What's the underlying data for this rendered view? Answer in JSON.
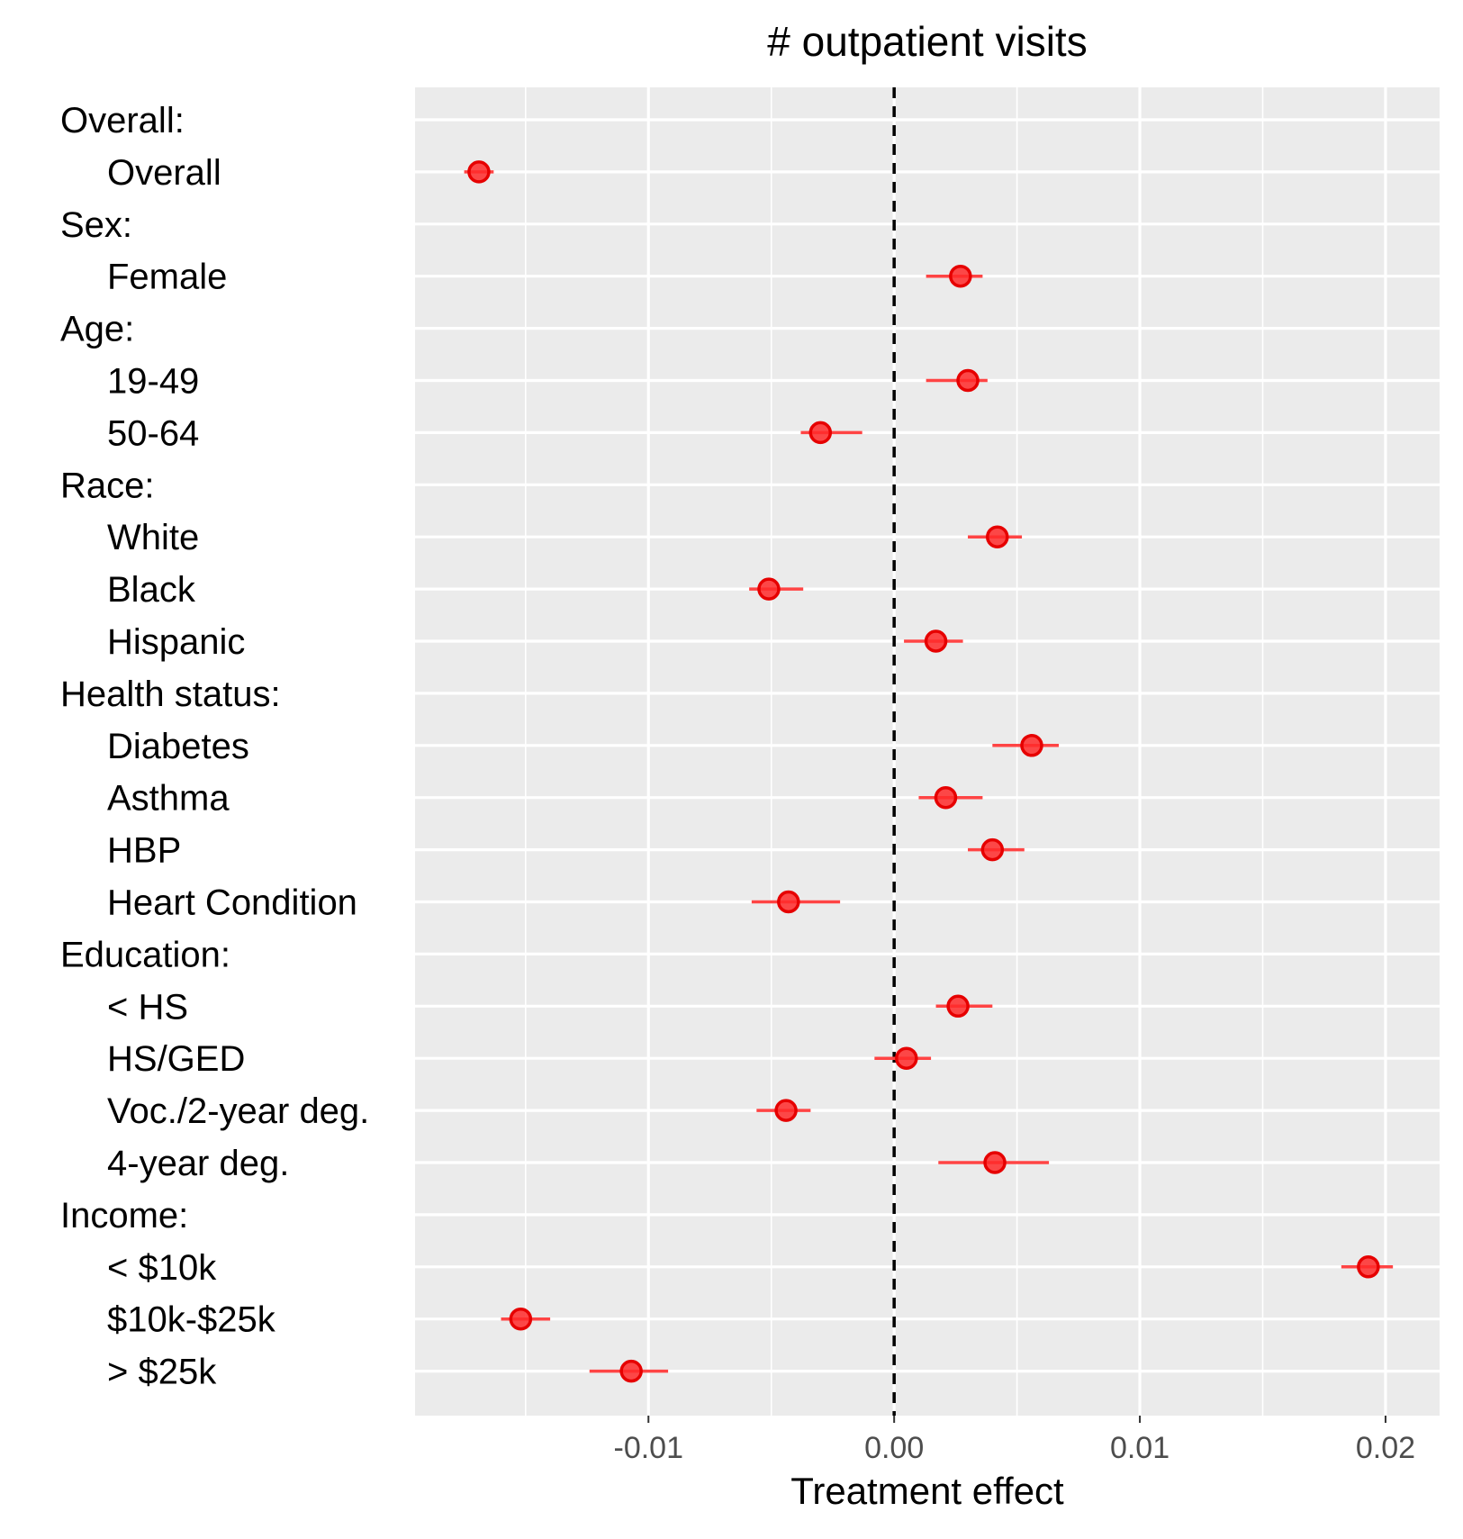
{
  "chart_data": {
    "type": "scatter",
    "subtype": "forest-plot",
    "title": "# outpatient visits",
    "xlabel": "Treatment effect",
    "ylabel": "",
    "xlim": [
      -0.0195,
      0.0222
    ],
    "x_ticks": [
      -0.01,
      0.0,
      0.01,
      0.02
    ],
    "x_tick_labels": [
      "-0.01",
      "0.00",
      "0.01",
      "0.02"
    ],
    "reference_line": 0.0,
    "grid": true,
    "point_color": "#ff2a2a",
    "errorbar_color": "#ff4444",
    "panel_color": "#ebebeb",
    "rows": [
      {
        "label": "Overall:",
        "header": true
      },
      {
        "label": "Overall",
        "header": false,
        "estimate": -0.0169,
        "lower": -0.0175,
        "upper": -0.0163
      },
      {
        "label": "Sex:",
        "header": true
      },
      {
        "label": "Female",
        "header": false,
        "estimate": 0.0027,
        "lower": 0.0013,
        "upper": 0.0036
      },
      {
        "label": "Age:",
        "header": true
      },
      {
        "label": "19-49",
        "header": false,
        "estimate": 0.003,
        "lower": 0.0013,
        "upper": 0.0038
      },
      {
        "label": "50-64",
        "header": false,
        "estimate": -0.003,
        "lower": -0.0038,
        "upper": -0.0013
      },
      {
        "label": "Race:",
        "header": true
      },
      {
        "label": "White",
        "header": false,
        "estimate": 0.0042,
        "lower": 0.003,
        "upper": 0.0052
      },
      {
        "label": "Black",
        "header": false,
        "estimate": -0.0051,
        "lower": -0.0059,
        "upper": -0.0037
      },
      {
        "label": "Hispanic",
        "header": false,
        "estimate": 0.0017,
        "lower": 0.0004,
        "upper": 0.0028
      },
      {
        "label": "Health status:",
        "header": true
      },
      {
        "label": "Diabetes",
        "header": false,
        "estimate": 0.0056,
        "lower": 0.004,
        "upper": 0.0067
      },
      {
        "label": "Asthma",
        "header": false,
        "estimate": 0.0021,
        "lower": 0.001,
        "upper": 0.0036
      },
      {
        "label": "HBP",
        "header": false,
        "estimate": 0.004,
        "lower": 0.003,
        "upper": 0.0053
      },
      {
        "label": "Heart Condition",
        "header": false,
        "estimate": -0.0043,
        "lower": -0.0058,
        "upper": -0.0022
      },
      {
        "label": "Education:",
        "header": true
      },
      {
        "label": "< HS",
        "header": false,
        "estimate": 0.0026,
        "lower": 0.0017,
        "upper": 0.004
      },
      {
        "label": "HS/GED",
        "header": false,
        "estimate": 0.0005,
        "lower": -0.0008,
        "upper": 0.0015
      },
      {
        "label": "Voc./2-year deg.",
        "header": false,
        "estimate": -0.0044,
        "lower": -0.0056,
        "upper": -0.0034
      },
      {
        "label": "4-year deg.",
        "header": false,
        "estimate": 0.0041,
        "lower": 0.0018,
        "upper": 0.0063
      },
      {
        "label": "Income:",
        "header": true
      },
      {
        "label": "< $10k",
        "header": false,
        "estimate": 0.0193,
        "lower": 0.0182,
        "upper": 0.0203
      },
      {
        "label": "$10k-$25k",
        "header": false,
        "estimate": -0.0152,
        "lower": -0.016,
        "upper": -0.014
      },
      {
        "label": "> $25k",
        "header": false,
        "estimate": -0.0107,
        "lower": -0.0124,
        "upper": -0.0092
      }
    ]
  }
}
